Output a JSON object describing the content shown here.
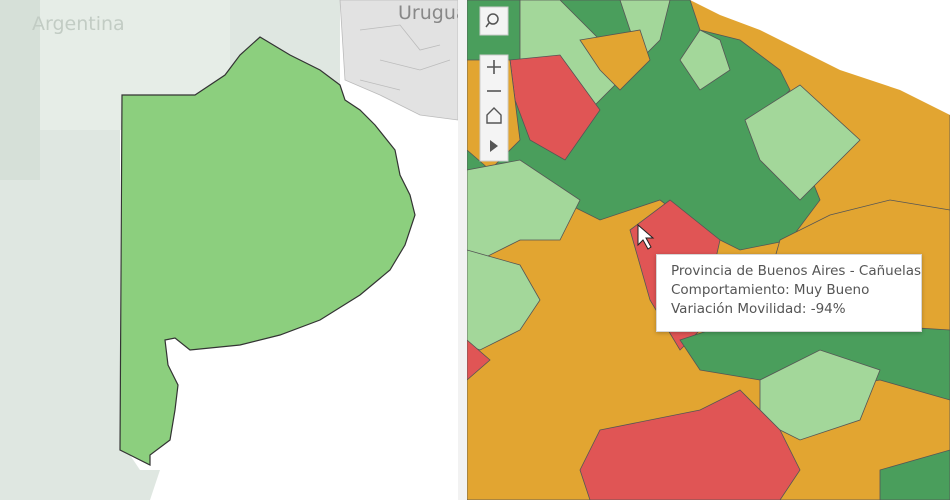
{
  "left_map": {
    "country_label": "Argentina",
    "neighbor_label": "Uruguay"
  },
  "tooltip": {
    "title": "Provincia de Buenos Aires - Cañuelas",
    "lines": [
      "Comportamiento: Muy Bueno",
      "Variación Movilidad: -94%"
    ]
  }
}
